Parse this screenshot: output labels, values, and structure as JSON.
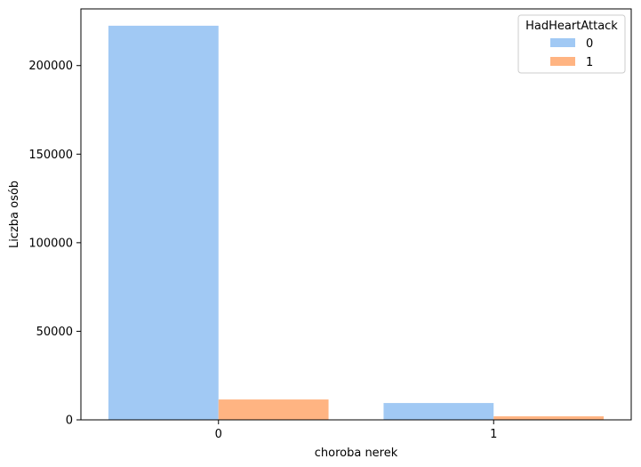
{
  "chart_data": {
    "type": "bar",
    "title": "",
    "xlabel": "choroba nerek",
    "ylabel": "Liczba osób",
    "categories": [
      "0",
      "1"
    ],
    "series": [
      {
        "name": "0",
        "values": [
          222500,
          9500
        ],
        "color": "#a1c9f4"
      },
      {
        "name": "1",
        "values": [
          11500,
          2000
        ],
        "color": "#ffb482"
      }
    ],
    "ylim": [
      0,
      232000
    ],
    "yticks": [
      0,
      50000,
      100000,
      150000,
      200000
    ],
    "legend": {
      "title": "HadHeartAttack",
      "position": "top-right"
    },
    "grid": false
  }
}
